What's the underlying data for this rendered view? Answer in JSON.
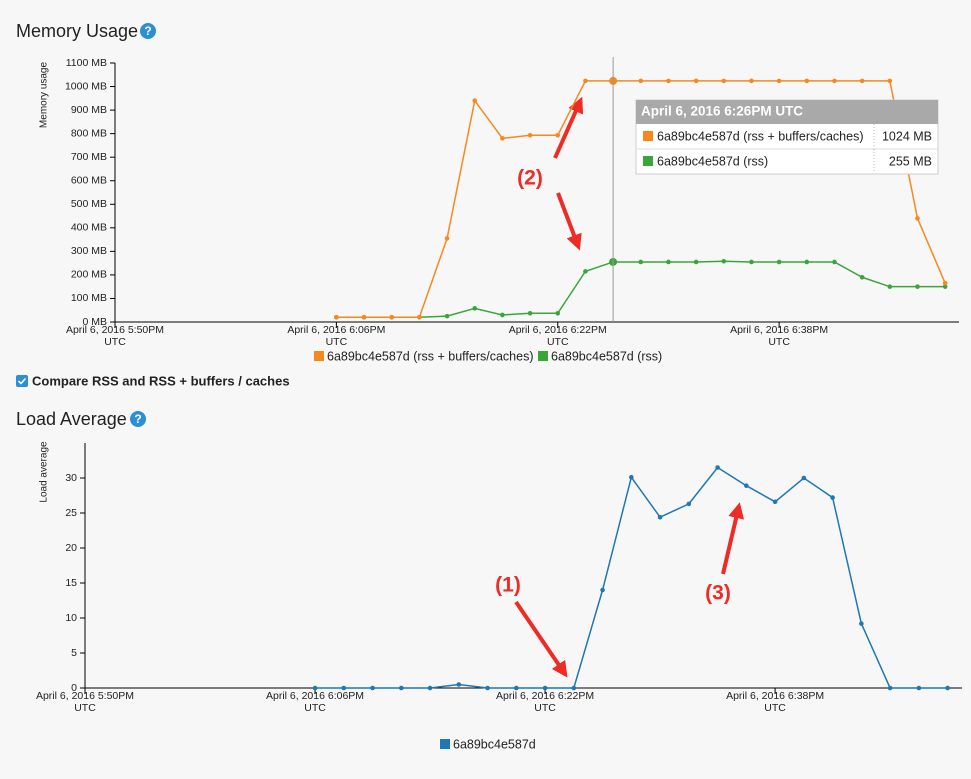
{
  "page": {
    "help_icon": "?",
    "checkbox_label": "Compare RSS and RSS + buffers / caches",
    "checkbox_checked": true
  },
  "chart_data": [
    {
      "type": "line",
      "title": "Memory Usage",
      "y_label": "Memory usage",
      "x": [
        "2016-04-06 18:06",
        "2016-04-06 18:08",
        "2016-04-06 18:10",
        "2016-04-06 18:12",
        "2016-04-06 18:14",
        "2016-04-06 18:16",
        "2016-04-06 18:18",
        "2016-04-06 18:20",
        "2016-04-06 18:22",
        "2016-04-06 18:24",
        "2016-04-06 18:26",
        "2016-04-06 18:28",
        "2016-04-06 18:30",
        "2016-04-06 18:32",
        "2016-04-06 18:34",
        "2016-04-06 18:36",
        "2016-04-06 18:38",
        "2016-04-06 18:40",
        "2016-04-06 18:42",
        "2016-04-06 18:44",
        "2016-04-06 18:46",
        "2016-04-06 18:48",
        "2016-04-06 18:50"
      ],
      "xlim": [
        "2016-04-06 17:50",
        "2016-04-06 18:51"
      ],
      "xticks": [
        {
          "value": "2016-04-06 17:50",
          "label": "April 6, 2016 5:50PM\nUTC"
        },
        {
          "value": "2016-04-06 18:06",
          "label": "April 6, 2016 6:06PM\nUTC"
        },
        {
          "value": "2016-04-06 18:22",
          "label": "April 6, 2016 6:22PM\nUTC"
        },
        {
          "value": "2016-04-06 18:38",
          "label": "April 6, 2016 6:38PM\nUTC"
        }
      ],
      "ylim": [
        0,
        1100
      ],
      "yticks": [
        {
          "value": 0,
          "label": "0 MB"
        },
        {
          "value": 100,
          "label": "100 MB"
        },
        {
          "value": 200,
          "label": "200 MB"
        },
        {
          "value": 300,
          "label": "300 MB"
        },
        {
          "value": 400,
          "label": "400 MB"
        },
        {
          "value": 500,
          "label": "500 MB"
        },
        {
          "value": 600,
          "label": "600 MB"
        },
        {
          "value": 700,
          "label": "700 MB"
        },
        {
          "value": 800,
          "label": "800 MB"
        },
        {
          "value": 900,
          "label": "900 MB"
        },
        {
          "value": 1000,
          "label": "1000 MB"
        },
        {
          "value": 1100,
          "label": "1100 MB"
        }
      ],
      "series": [
        {
          "name": "6a89bc4e587d (rss + buffers/caches)",
          "color": "#f5891f",
          "values": [
            20,
            20,
            20,
            20,
            355,
            940,
            780,
            793,
            793,
            1024,
            1024,
            1024,
            1024,
            1024,
            1024,
            1024,
            1024,
            1024,
            1024,
            1024,
            1024,
            440,
            165
          ]
        },
        {
          "name": "6a89bc4e587d (rss)",
          "color": "#3ba53a",
          "values": [
            20,
            20,
            20,
            20,
            25,
            58,
            30,
            37,
            37,
            215,
            255,
            255,
            255,
            255,
            258,
            255,
            255,
            255,
            255,
            190,
            150,
            150,
            150
          ]
        }
      ],
      "tooltip": {
        "title": "April 6, 2016 6:26PM UTC",
        "at": "2016-04-06 18:26",
        "rows": [
          {
            "value": "1024 MB"
          },
          {
            "value": "255 MB"
          }
        ]
      },
      "annotations": [
        {
          "text": "(2)"
        }
      ]
    },
    {
      "type": "line",
      "title": "Load Average",
      "y_label": "Load average",
      "x": [
        "2016-04-06 18:06",
        "2016-04-06 18:08",
        "2016-04-06 18:10",
        "2016-04-06 18:12",
        "2016-04-06 18:14",
        "2016-04-06 18:16",
        "2016-04-06 18:18",
        "2016-04-06 18:20",
        "2016-04-06 18:22",
        "2016-04-06 18:24",
        "2016-04-06 18:26",
        "2016-04-06 18:28",
        "2016-04-06 18:30",
        "2016-04-06 18:32",
        "2016-04-06 18:34",
        "2016-04-06 18:36",
        "2016-04-06 18:38",
        "2016-04-06 18:40",
        "2016-04-06 18:42",
        "2016-04-06 18:44",
        "2016-04-06 18:46",
        "2016-04-06 18:48",
        "2016-04-06 18:50"
      ],
      "xlim": [
        "2016-04-06 17:50",
        "2016-04-06 18:51"
      ],
      "xticks": [
        {
          "value": "2016-04-06 17:50",
          "label": "April 6, 2016 5:50PM\nUTC"
        },
        {
          "value": "2016-04-06 18:06",
          "label": "April 6, 2016 6:06PM\nUTC"
        },
        {
          "value": "2016-04-06 18:22",
          "label": "April 6, 2016 6:22PM\nUTC"
        },
        {
          "value": "2016-04-06 18:38",
          "label": "April 6, 2016 6:38PM\nUTC"
        }
      ],
      "ylim": [
        0,
        35
      ],
      "yticks": [
        0,
        5,
        10,
        15,
        20,
        25,
        30
      ],
      "series": [
        {
          "name": "6a89bc4e587d",
          "color": "#1f77b4",
          "values": [
            0,
            0,
            0,
            0,
            0,
            0.5,
            0,
            0,
            0,
            0,
            14,
            30.1,
            24.4,
            26.3,
            31.5,
            28.9,
            26.6,
            30,
            27.2,
            9.2,
            0,
            0,
            0
          ]
        }
      ],
      "annotations": [
        {
          "text": "(1)"
        },
        {
          "text": "(3)"
        }
      ]
    }
  ]
}
